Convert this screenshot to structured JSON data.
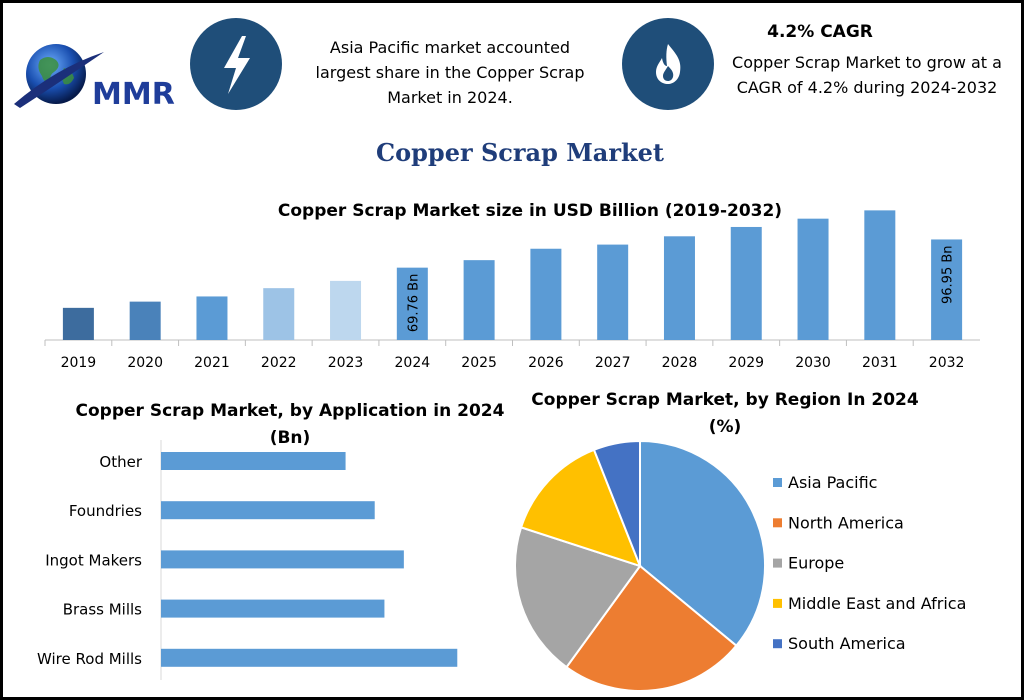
{
  "header": {
    "logo_text": "MMR",
    "left_icon": "lightning-bolt-icon",
    "left_text": "Asia Pacific market accounted largest share in the Copper Scrap Market in 2024.",
    "right_icon": "flame-icon",
    "right_title": "4.2% CAGR",
    "right_text": "Copper Scrap Market to grow at a CAGR of 4.2% during 2024-2032"
  },
  "main_title": "Copper Scrap Market",
  "colors": {
    "bar_main": "#5b9bd5",
    "bar_2019": "#3d6c9e",
    "bar_2020": "#4a82ba",
    "bar_2022": "#9dc3e6",
    "bar_2023": "#bdd7ee",
    "badge": "#1f4e79",
    "title_blue": "#1f3d7a"
  },
  "chart_data": [
    {
      "type": "bar",
      "title": "Copper Scrap Market size in USD Billion (2019-2032)",
      "categories": [
        "2019",
        "2020",
        "2021",
        "2022",
        "2023",
        "2024",
        "2025",
        "2026",
        "2027",
        "2028",
        "2029",
        "2030",
        "2031",
        "2032"
      ],
      "values": [
        31,
        37,
        42,
        50,
        57,
        69.76,
        77,
        88,
        92,
        100,
        109,
        117,
        125,
        96.95
      ],
      "data_labels": {
        "2024": "69.76 Bn",
        "2032": "96.95 Bn"
      },
      "ylim": [
        0,
        135
      ]
    },
    {
      "type": "bar",
      "orientation": "horizontal",
      "title": "Copper Scrap Market, by Application in 2024 (Bn)",
      "categories": [
        "Other",
        "Foundries",
        "Ingot Makers",
        "Brass Mills",
        "Wire Rod Mills"
      ],
      "values": [
        19,
        22,
        25,
        23,
        30.5
      ],
      "xlim": [
        0,
        35
      ]
    },
    {
      "type": "pie",
      "title": "Copper Scrap Market, by Region In 2024 (%)",
      "labels": [
        "Asia Pacific",
        "North America",
        "Europe",
        "Middle East and Africa",
        "South America"
      ],
      "values": [
        36,
        24,
        20,
        14,
        6
      ],
      "colors": [
        "#5b9bd5",
        "#ed7d31",
        "#a5a5a5",
        "#ffc000",
        "#4472c4"
      ],
      "legend_position": "right"
    }
  ]
}
